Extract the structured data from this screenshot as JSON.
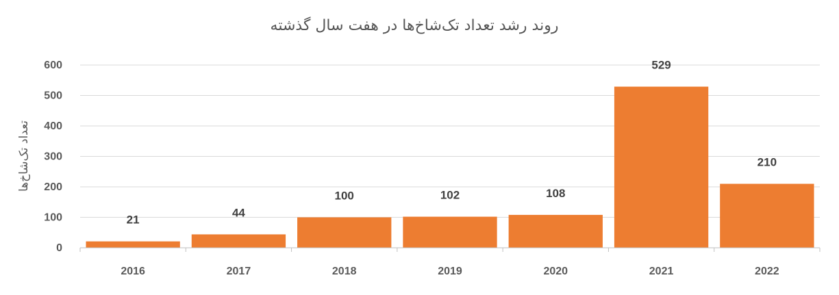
{
  "chart_data": {
    "type": "bar",
    "title": "روند رشد تعداد تک‌شاخ‌ها در هفت سال گذشته",
    "xlabel": "",
    "ylabel": "تعداد تک‌شاخ‌ها",
    "categories": [
      "2016",
      "2017",
      "2018",
      "2019",
      "2020",
      "2021",
      "2022"
    ],
    "values": [
      21,
      44,
      100,
      102,
      108,
      529,
      210
    ],
    "data_labels": [
      "21",
      "44",
      "100",
      "102",
      "108",
      "529",
      "210"
    ],
    "y_ticks": [
      "0",
      "100",
      "200",
      "300",
      "400",
      "500",
      "600"
    ],
    "ylim": [
      0,
      600
    ],
    "grid": true,
    "legend": "none",
    "bar_color": "#ED7D31"
  }
}
